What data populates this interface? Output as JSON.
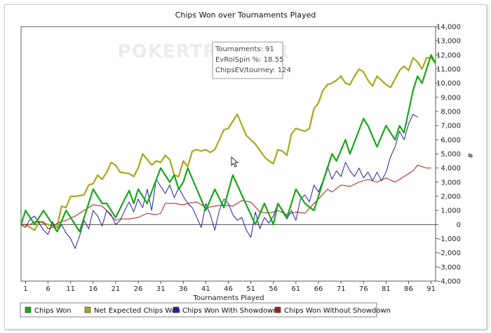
{
  "chart_data": {
    "type": "line",
    "title": "Chips Won over Tournaments Played",
    "xlabel": "Tournaments Played",
    "ylabel": "#",
    "xlim": [
      0,
      92
    ],
    "ylim": [
      -4000,
      14000
    ],
    "x_ticks": [
      1,
      6,
      11,
      16,
      21,
      26,
      31,
      36,
      41,
      46,
      51,
      56,
      61,
      66,
      71,
      76,
      81,
      86,
      91
    ],
    "y_ticks": [
      -4000,
      -3000,
      -2000,
      -1000,
      0,
      1000,
      2000,
      3000,
      4000,
      5000,
      6000,
      7000,
      8000,
      9000,
      10000,
      11000,
      12000,
      13000,
      14000
    ],
    "y_tick_labels": [
      "-4,000",
      "-3,000",
      "-2,000",
      "-1,000",
      "0",
      "1,000",
      "2,000",
      "3,000",
      "4,000",
      "5,000",
      "6,000",
      "7,000",
      "8,000",
      "9,000",
      "10,000",
      "11,000",
      "12,000",
      "13,000",
      "14,000"
    ],
    "grid": false,
    "legend_position": "bottom",
    "watermark": "POKERTRACKER",
    "series": [
      {
        "name": "Chips Won",
        "color": "#17a817",
        "stroke_width": 2.2,
        "points": [
          [
            0,
            0
          ],
          [
            1,
            1000
          ],
          [
            3,
            0
          ],
          [
            5,
            1000
          ],
          [
            8,
            -500
          ],
          [
            10,
            1000
          ],
          [
            13,
            -500
          ],
          [
            16,
            2500
          ],
          [
            18,
            1500
          ],
          [
            19,
            1500
          ],
          [
            21,
            500
          ],
          [
            23,
            1800
          ],
          [
            24,
            2400
          ],
          [
            25,
            1500
          ],
          [
            26,
            2500
          ],
          [
            28,
            1500
          ],
          [
            31,
            4000
          ],
          [
            33,
            3000
          ],
          [
            34,
            3500
          ],
          [
            35,
            2500
          ],
          [
            36,
            3000
          ],
          [
            37,
            4000
          ],
          [
            41,
            1000
          ],
          [
            43,
            2500
          ],
          [
            45,
            1200
          ],
          [
            47,
            3500
          ],
          [
            52,
            0
          ],
          [
            54,
            1500
          ],
          [
            56,
            0
          ],
          [
            57,
            1500
          ],
          [
            59,
            500
          ],
          [
            61,
            2500
          ],
          [
            63,
            1500
          ],
          [
            65,
            1000
          ],
          [
            67,
            3000
          ],
          [
            69,
            5000
          ],
          [
            70,
            4500
          ],
          [
            72,
            6000
          ],
          [
            73,
            5000
          ],
          [
            76,
            7500
          ],
          [
            77,
            7000
          ],
          [
            79,
            5500
          ],
          [
            81,
            7000
          ],
          [
            82,
            6500
          ],
          [
            83,
            6000
          ],
          [
            84,
            7000
          ],
          [
            85,
            6500
          ],
          [
            87,
            9500
          ],
          [
            88,
            10500
          ],
          [
            89,
            10000
          ],
          [
            91,
            12000
          ],
          [
            92,
            11400
          ]
        ]
      },
      {
        "name": "Net Expected Chips Won",
        "color": "#a8a81a",
        "stroke_width": 2.2,
        "points": [
          [
            0,
            0
          ],
          [
            1,
            0
          ],
          [
            3,
            -400
          ],
          [
            4,
            200
          ],
          [
            6,
            0
          ],
          [
            8,
            -200
          ],
          [
            9,
            1300
          ],
          [
            10,
            1200
          ],
          [
            11,
            2000
          ],
          [
            12,
            2000
          ],
          [
            14,
            2100
          ],
          [
            15,
            2800
          ],
          [
            16,
            2900
          ],
          [
            17,
            3500
          ],
          [
            18,
            3200
          ],
          [
            19,
            3700
          ],
          [
            20,
            4400
          ],
          [
            21,
            4200
          ],
          [
            22,
            3700
          ],
          [
            24,
            3600
          ],
          [
            25,
            3400
          ],
          [
            26,
            4000
          ],
          [
            27,
            5000
          ],
          [
            28,
            4600
          ],
          [
            29,
            4200
          ],
          [
            30,
            4500
          ],
          [
            31,
            4400
          ],
          [
            32,
            4900
          ],
          [
            33,
            4600
          ],
          [
            34,
            3500
          ],
          [
            35,
            3400
          ],
          [
            36,
            4500
          ],
          [
            37,
            4100
          ],
          [
            38,
            5200
          ],
          [
            39,
            5300
          ],
          [
            40,
            5200
          ],
          [
            41,
            5300
          ],
          [
            42,
            5100
          ],
          [
            43,
            5300
          ],
          [
            44,
            6000
          ],
          [
            45,
            6700
          ],
          [
            46,
            6800
          ],
          [
            48,
            7800
          ],
          [
            50,
            6300
          ],
          [
            52,
            5700
          ],
          [
            54,
            4800
          ],
          [
            55,
            4500
          ],
          [
            56,
            4300
          ],
          [
            57,
            5300
          ],
          [
            58,
            5200
          ],
          [
            59,
            4900
          ],
          [
            60,
            6400
          ],
          [
            61,
            6800
          ],
          [
            62,
            6700
          ],
          [
            63,
            6600
          ],
          [
            64,
            6800
          ],
          [
            65,
            8200
          ],
          [
            66,
            8600
          ],
          [
            67,
            9500
          ],
          [
            68,
            9900
          ],
          [
            69,
            10000
          ],
          [
            70,
            10200
          ],
          [
            71,
            10500
          ],
          [
            72,
            10000
          ],
          [
            73,
            9900
          ],
          [
            74,
            10500
          ],
          [
            75,
            11000
          ],
          [
            76,
            10800
          ],
          [
            77,
            10200
          ],
          [
            78,
            9800
          ],
          [
            79,
            10500
          ],
          [
            80,
            10200
          ],
          [
            81,
            9900
          ],
          [
            82,
            9700
          ],
          [
            83,
            10300
          ],
          [
            84,
            10900
          ],
          [
            85,
            11200
          ],
          [
            86,
            10900
          ],
          [
            87,
            11800
          ],
          [
            88,
            11500
          ],
          [
            89,
            11000
          ],
          [
            90,
            11800
          ],
          [
            91,
            11800
          ],
          [
            92,
            11400
          ]
        ]
      },
      {
        "name": "Chips Won With Showdown",
        "color": "#2020a0",
        "stroke_width": 1,
        "points": [
          [
            0,
            0
          ],
          [
            1,
            -200
          ],
          [
            2,
            400
          ],
          [
            3,
            600
          ],
          [
            4,
            100
          ],
          [
            5,
            -400
          ],
          [
            6,
            -700
          ],
          [
            7,
            200
          ],
          [
            8,
            -500
          ],
          [
            9,
            0
          ],
          [
            10,
            -600
          ],
          [
            11,
            -1000
          ],
          [
            12,
            -1700
          ],
          [
            13,
            -800
          ],
          [
            14,
            300
          ],
          [
            15,
            -300
          ],
          [
            16,
            1000
          ],
          [
            17,
            600
          ],
          [
            18,
            -100
          ],
          [
            19,
            1000
          ],
          [
            20,
            700
          ],
          [
            21,
            0
          ],
          [
            22,
            300
          ],
          [
            23,
            1000
          ],
          [
            24,
            1600
          ],
          [
            25,
            900
          ],
          [
            26,
            1800
          ],
          [
            27,
            1200
          ],
          [
            28,
            2500
          ],
          [
            29,
            1000
          ],
          [
            30,
            3200
          ],
          [
            31,
            2700
          ],
          [
            32,
            2200
          ],
          [
            33,
            2800
          ],
          [
            34,
            1900
          ],
          [
            35,
            2600
          ],
          [
            36,
            2000
          ],
          [
            37,
            1500
          ],
          [
            38,
            1200
          ],
          [
            39,
            500
          ],
          [
            40,
            -200
          ],
          [
            41,
            1500
          ],
          [
            42,
            700
          ],
          [
            43,
            -400
          ],
          [
            44,
            1000
          ],
          [
            45,
            1800
          ],
          [
            46,
            1500
          ],
          [
            47,
            700
          ],
          [
            48,
            300
          ],
          [
            49,
            500
          ],
          [
            50,
            -400
          ],
          [
            51,
            -900
          ],
          [
            52,
            900
          ],
          [
            53,
            -300
          ],
          [
            54,
            500
          ],
          [
            55,
            100
          ],
          [
            56,
            600
          ],
          [
            57,
            1500
          ],
          [
            58,
            900
          ],
          [
            59,
            400
          ],
          [
            60,
            1000
          ],
          [
            61,
            300
          ],
          [
            62,
            1800
          ],
          [
            63,
            2100
          ],
          [
            64,
            1600
          ],
          [
            65,
            2800
          ],
          [
            66,
            2300
          ],
          [
            67,
            3100
          ],
          [
            68,
            4100
          ],
          [
            69,
            3200
          ],
          [
            70,
            3800
          ],
          [
            71,
            3400
          ],
          [
            72,
            4400
          ],
          [
            73,
            3800
          ],
          [
            74,
            3400
          ],
          [
            75,
            4000
          ],
          [
            76,
            3300
          ],
          [
            77,
            3700
          ],
          [
            78,
            3100
          ],
          [
            79,
            3700
          ],
          [
            80,
            3100
          ],
          [
            81,
            3700
          ],
          [
            82,
            4800
          ],
          [
            83,
            5500
          ],
          [
            84,
            6600
          ],
          [
            85,
            6000
          ],
          [
            86,
            7100
          ],
          [
            87,
            7800
          ],
          [
            88,
            7600
          ]
        ]
      },
      {
        "name": "Chips Won Without Showdown",
        "color": "#b01818",
        "stroke_width": 1,
        "points": [
          [
            0,
            0
          ],
          [
            2,
            0
          ],
          [
            3,
            200
          ],
          [
            5,
            200
          ],
          [
            6,
            -300
          ],
          [
            7,
            -200
          ],
          [
            8,
            100
          ],
          [
            10,
            300
          ],
          [
            12,
            600
          ],
          [
            14,
            1000
          ],
          [
            16,
            1400
          ],
          [
            18,
            1300
          ],
          [
            19,
            1000
          ],
          [
            20,
            600
          ],
          [
            21,
            300
          ],
          [
            22,
            400
          ],
          [
            24,
            400
          ],
          [
            26,
            500
          ],
          [
            28,
            800
          ],
          [
            30,
            700
          ],
          [
            31,
            800
          ],
          [
            32,
            1500
          ],
          [
            34,
            1500
          ],
          [
            36,
            1400
          ],
          [
            37,
            1500
          ],
          [
            39,
            1600
          ],
          [
            41,
            1200
          ],
          [
            43,
            1300
          ],
          [
            45,
            1400
          ],
          [
            47,
            1300
          ],
          [
            49,
            1700
          ],
          [
            51,
            1600
          ],
          [
            53,
            900
          ],
          [
            55,
            800
          ],
          [
            57,
            1000
          ],
          [
            59,
            700
          ],
          [
            61,
            900
          ],
          [
            63,
            800
          ],
          [
            65,
            1500
          ],
          [
            66,
            1800
          ],
          [
            68,
            2500
          ],
          [
            69,
            2300
          ],
          [
            71,
            2800
          ],
          [
            73,
            2700
          ],
          [
            75,
            3000
          ],
          [
            77,
            3200
          ],
          [
            79,
            3000
          ],
          [
            81,
            3300
          ],
          [
            83,
            3000
          ],
          [
            85,
            3400
          ],
          [
            86,
            3600
          ],
          [
            87,
            3800
          ],
          [
            88,
            4200
          ],
          [
            90,
            4000
          ],
          [
            91,
            4000
          ]
        ]
      }
    ],
    "tooltip": {
      "lines": [
        "Tournaments: 91",
        "EvRoiSpin %: 18.55",
        "ChipsEV/tourney: 124"
      ]
    }
  }
}
